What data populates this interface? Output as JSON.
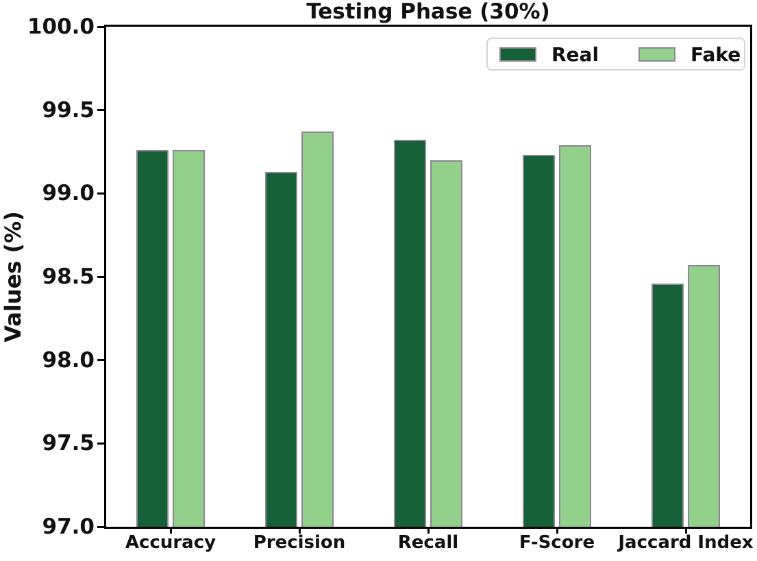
{
  "title": "Testing Phase (30%)",
  "chart_data": {
    "type": "bar",
    "title": "Testing Phase (30%)",
    "xlabel": "",
    "ylabel": "Values (%)",
    "categories": [
      "Accuracy",
      "Precision",
      "Recall",
      "F-Score",
      "Jaccard Index"
    ],
    "series": [
      {
        "name": "Real",
        "color": "#166038",
        "values": [
          99.26,
          99.13,
          99.32,
          99.23,
          98.46
        ]
      },
      {
        "name": "Fake",
        "color": "#93d08c",
        "values": [
          99.26,
          99.37,
          99.2,
          99.29,
          98.57
        ]
      }
    ],
    "ylim": [
      97.0,
      100.0
    ],
    "ytick_step": 0.5,
    "yticks": [
      "97.0",
      "97.5",
      "98.0",
      "98.5",
      "99.0",
      "99.5",
      "100.0"
    ],
    "grid": false,
    "legend_position": "upper right",
    "bar_edge_color": "#8d8894",
    "axis_color": "#000000",
    "background_color": "#ffffff"
  }
}
